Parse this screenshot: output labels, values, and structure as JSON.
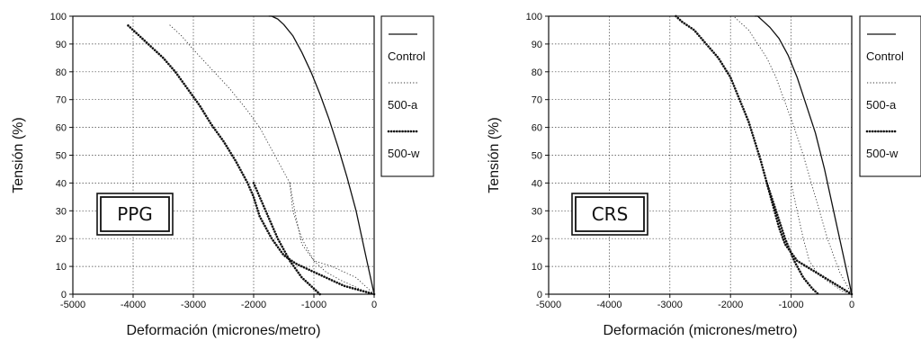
{
  "chart_data": [
    {
      "type": "line",
      "xlabel": "Deformación (micrones/metro)",
      "ylabel": "Tensión (%)",
      "xlim": [
        -5000,
        0
      ],
      "ylim": [
        0,
        100
      ],
      "x_ticks": [
        "-5000",
        "-4000",
        "-3000",
        "-2000",
        "-1000",
        "0"
      ],
      "y_ticks": [
        "0",
        "10",
        "20",
        "30",
        "40",
        "50",
        "60",
        "70",
        "80",
        "90",
        "100"
      ],
      "grid": true,
      "legend_position": "right",
      "annotation": "PPG",
      "series": [
        {
          "name": "Control",
          "style": "solid",
          "x": [
            0,
            -150,
            -300,
            -450,
            -600,
            -750,
            -900,
            -1050,
            -1200,
            -1350,
            -1500,
            -1600,
            -1700,
            -1750
          ],
          "y": [
            0,
            15,
            30,
            42,
            53,
            63,
            72,
            80,
            87,
            93,
            97,
            99,
            100,
            100
          ]
        },
        {
          "name": "500-a",
          "style": "thin-dotted",
          "x": [
            0,
            -300,
            -700,
            -1000,
            -1200,
            -1300,
            -1400,
            -1500,
            -1700,
            -1900,
            -2100,
            -2400,
            -2700,
            -3000,
            -3200,
            -3400
          ],
          "y": [
            0,
            6,
            10,
            12,
            18,
            28,
            40,
            44,
            52,
            60,
            66,
            74,
            81,
            88,
            93,
            97
          ],
          "return_x": [
            -1400,
            -1350,
            -1200,
            -1000,
            -800,
            -550,
            -350,
            -150,
            0
          ],
          "return_y": [
            40,
            30,
            20,
            12,
            8,
            5,
            3,
            1,
            0
          ]
        },
        {
          "name": "500-w",
          "style": "heavy-dotted",
          "x": [
            0,
            -500,
            -1000,
            -1300,
            -1500,
            -1700,
            -1900,
            -2000,
            -2100,
            -2300,
            -2500,
            -2700,
            -2900,
            -3100,
            -3300,
            -3500,
            -3700,
            -3900,
            -4100
          ],
          "y": [
            0,
            3,
            8,
            11,
            14,
            20,
            28,
            35,
            40,
            48,
            55,
            61,
            68,
            74,
            80,
            85,
            89,
            93,
            97
          ],
          "return_x": [
            -2000,
            -1800,
            -1600,
            -1400,
            -1200,
            -1000,
            -900
          ],
          "return_y": [
            40,
            30,
            20,
            12,
            6,
            2,
            0
          ]
        }
      ]
    },
    {
      "type": "line",
      "xlabel": "Deformación (micrones/metro)",
      "ylabel": "Tensión (%)",
      "xlim": [
        -5000,
        0
      ],
      "ylim": [
        0,
        100
      ],
      "x_ticks": [
        "-5000",
        "-4000",
        "-3000",
        "-2000",
        "-1000",
        "0"
      ],
      "y_ticks": [
        "0",
        "10",
        "20",
        "30",
        "40",
        "50",
        "60",
        "70",
        "80",
        "90",
        "100"
      ],
      "grid": true,
      "legend_position": "right",
      "annotation": "CRS",
      "series": [
        {
          "name": "Control",
          "style": "solid",
          "x": [
            0,
            -150,
            -300,
            -450,
            -600,
            -750,
            -900,
            -1050,
            -1200,
            -1350,
            -1450,
            -1550,
            -1600
          ],
          "y": [
            0,
            15,
            30,
            45,
            58,
            68,
            78,
            86,
            92,
            96,
            98,
            100,
            100
          ]
        },
        {
          "name": "500-a",
          "style": "thin-dotted",
          "x": [
            0,
            -200,
            -400,
            -600,
            -800,
            -950,
            -1050,
            -1150,
            -1250,
            -1400,
            -1550,
            -1700,
            -1850,
            -1950
          ],
          "y": [
            0,
            8,
            20,
            35,
            50,
            60,
            66,
            72,
            78,
            85,
            90,
            95,
            98,
            100
          ],
          "return_x": [
            -1000,
            -900,
            -800,
            -700,
            -550,
            -350,
            -150,
            0
          ],
          "return_y": [
            40,
            30,
            20,
            12,
            7,
            4,
            1,
            0
          ]
        },
        {
          "name": "500-w",
          "style": "heavy-dotted",
          "x": [
            0,
            -300,
            -600,
            -900,
            -1100,
            -1200,
            -1300,
            -1400,
            -1500,
            -1600,
            -1700,
            -1850,
            -2000,
            -2200,
            -2400,
            -2600,
            -2800,
            -2900
          ],
          "y": [
            0,
            4,
            8,
            12,
            18,
            24,
            32,
            40,
            48,
            55,
            62,
            70,
            78,
            85,
            90,
            95,
            98,
            100
          ],
          "return_x": [
            -1400,
            -1250,
            -1100,
            -950,
            -800,
            -650,
            -550
          ],
          "return_y": [
            40,
            30,
            20,
            12,
            6,
            2,
            0
          ]
        }
      ]
    }
  ]
}
